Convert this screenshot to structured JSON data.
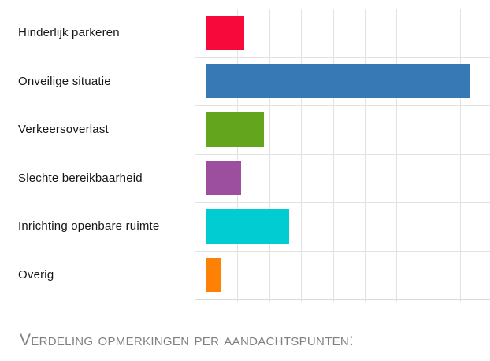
{
  "chart_data": {
    "type": "bar",
    "orientation": "horizontal",
    "title": "",
    "xlabel": "",
    "ylabel": "",
    "categories": [
      "Hinderlijk parkeren",
      "Onveilige situatie",
      "Verkeersoverlast",
      "Slechte bereikbaarheid",
      "Inrichting openbare ruimte",
      "Overig"
    ],
    "values": [
      12,
      83,
      18,
      11,
      26,
      4.5
    ],
    "bar_colors": [
      "#f8093b",
      "#3679b5",
      "#64a51e",
      "#9c4f9f",
      "#00ccd1",
      "#fc8105"
    ],
    "xlim": [
      0,
      89
    ],
    "gridline_interval": 10,
    "grid": true,
    "legend": false,
    "tick_labels_visible": false
  },
  "caption": {
    "text": "Verdeling opmerkingen per aandachtspunten:"
  },
  "colors": {
    "gridline": "#e2e2e2",
    "plot_border": "#dadada",
    "axis_line": "#c2c2c2",
    "label_text": "#161616",
    "caption_text": "#808080",
    "background": "#ffffff"
  }
}
